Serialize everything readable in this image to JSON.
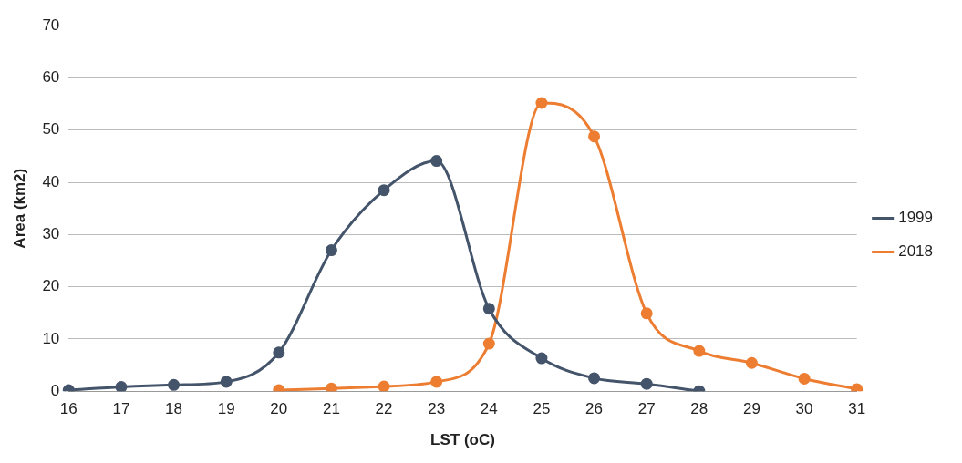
{
  "chart_data": {
    "type": "line",
    "xlabel": "LST (oC)",
    "ylabel": "Area (km2)",
    "categories": [
      "16",
      "17",
      "18",
      "19",
      "20",
      "21",
      "22",
      "23",
      "24",
      "25",
      "26",
      "27",
      "28",
      "29",
      "30",
      "31"
    ],
    "series": [
      {
        "name": "1999",
        "color": "#44546a",
        "values": [
          0.2,
          0.8,
          1.2,
          1.8,
          7.4,
          27,
          38.5,
          44.1,
          15.8,
          6.3,
          2.5,
          1.4,
          0,
          null,
          null,
          null
        ]
      },
      {
        "name": "2018",
        "color": "#ed7d31",
        "values": [
          null,
          null,
          null,
          null,
          0.2,
          0.5,
          0.9,
          1.8,
          9.1,
          55.2,
          48.8,
          14.9,
          7.7,
          5.4,
          2.4,
          0.4
        ]
      }
    ],
    "ylim": [
      0,
      70
    ],
    "yticks": [
      0,
      10,
      20,
      30,
      40,
      50,
      60,
      70
    ],
    "grid": "y",
    "legend": "right",
    "marker": "circle",
    "line_style": "solid"
  }
}
